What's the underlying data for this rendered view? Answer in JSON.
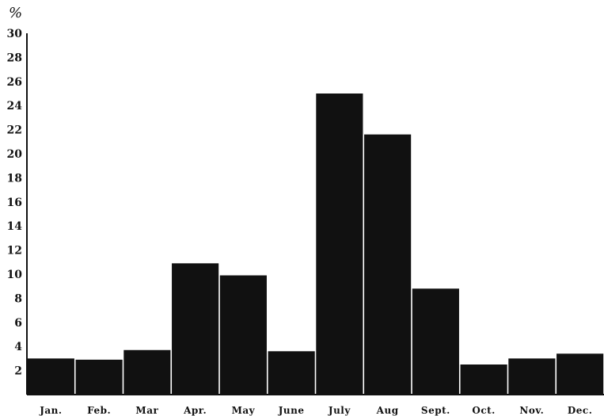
{
  "chart_data": {
    "type": "bar",
    "title": "",
    "xlabel": "",
    "ylabel": "%",
    "ylim": [
      0,
      30
    ],
    "yticks": [
      2,
      4,
      6,
      8,
      10,
      12,
      14,
      16,
      18,
      20,
      22,
      24,
      26,
      28,
      30
    ],
    "grid": false,
    "legend": "none",
    "bar_color": "#111111",
    "categories": [
      "Jan.",
      "Feb.",
      "Mar",
      "Apr.",
      "May",
      "June",
      "July",
      "Aug",
      "Sept.",
      "Oct.",
      "Nov.",
      "Dec."
    ],
    "values": [
      3.0,
      2.9,
      3.7,
      10.9,
      9.9,
      3.6,
      25.0,
      21.6,
      8.8,
      2.5,
      3.0,
      3.4
    ]
  }
}
